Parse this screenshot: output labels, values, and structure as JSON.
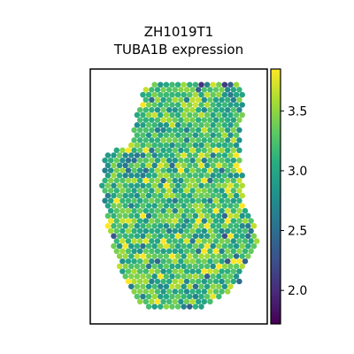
{
  "chart_data": {
    "type": "scatter",
    "title": [
      "ZH1019T1",
      "TUBA1B expression"
    ],
    "xlabel": "",
    "ylabel": "",
    "colorbar": {
      "cmap": "viridis",
      "vmin": 1.72,
      "vmax": 3.85,
      "ticks": [
        2.0,
        2.5,
        3.0,
        3.5
      ],
      "tick_labels": [
        "2.0",
        "2.5",
        "3.0",
        "3.5"
      ]
    },
    "value_mean": 3.2,
    "value_spread": 0.32,
    "grid": false,
    "legend": "none"
  },
  "colors": {
    "frame": "#000000",
    "background": "#ffffff"
  }
}
